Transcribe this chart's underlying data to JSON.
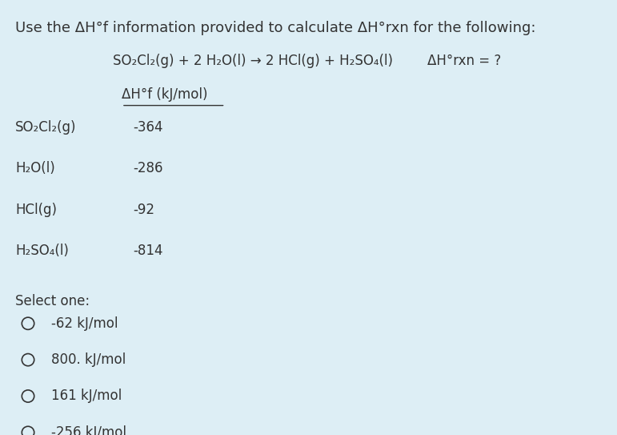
{
  "background_color": "#ddeef5",
  "text_color": "#333333",
  "title_line": "Use the ΔH°f information provided to calculate ΔH°rxn for the following:",
  "reaction_line": "SO₂Cl₂(g) + 2 H₂O(l) → 2 HCl(g) + H₂SO₄(l)",
  "delta_hrxn_label": "ΔH°rxn = ?",
  "table_header": "ΔH°f (kJ/mol)",
  "compounds": [
    "SO₂Cl₂(g)",
    "H₂O(l)",
    "HCl(g)",
    "H₂SO₄(l)"
  ],
  "values": [
    "-364",
    "-286",
    "-92",
    "-814"
  ],
  "select_one_label": "Select one:",
  "choices": [
    "-62 kJ/mol",
    "800. kJ/mol",
    "161 kJ/mol",
    "-256 kJ/mol"
  ],
  "font_size_title": 13,
  "font_size_body": 12
}
